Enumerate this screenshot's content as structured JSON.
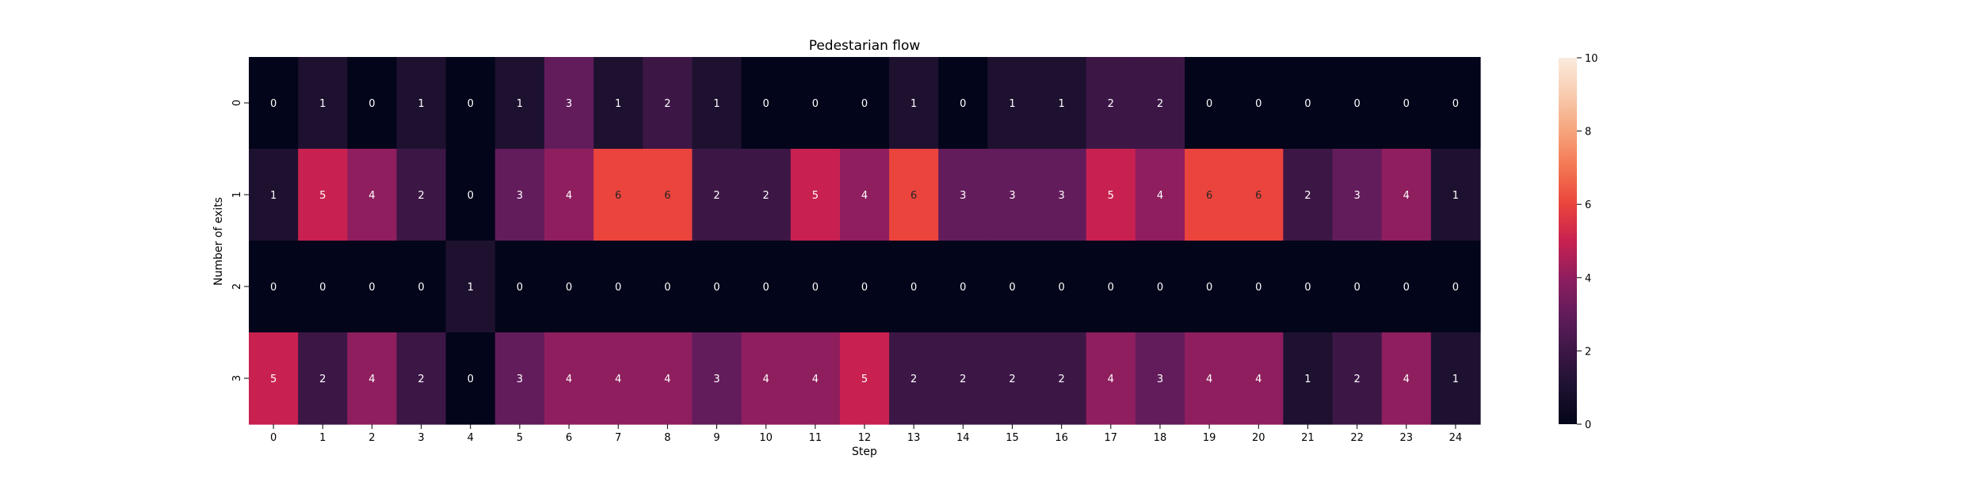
{
  "chart_data": {
    "type": "heatmap",
    "title": "Pedestarian flow",
    "xlabel": "Step",
    "ylabel": "Number of exits",
    "x_ticks": [
      "0",
      "1",
      "2",
      "3",
      "4",
      "5",
      "6",
      "7",
      "8",
      "9",
      "10",
      "11",
      "12",
      "13",
      "14",
      "15",
      "16",
      "17",
      "18",
      "19",
      "20",
      "21",
      "22",
      "23",
      "24"
    ],
    "y_ticks": [
      "0",
      "1",
      "2",
      "3"
    ],
    "values": [
      [
        0,
        1,
        0,
        1,
        0,
        1,
        3,
        1,
        2,
        1,
        0,
        0,
        0,
        1,
        0,
        1,
        1,
        2,
        2,
        0,
        0,
        0,
        0,
        0,
        0
      ],
      [
        1,
        5,
        4,
        2,
        0,
        3,
        4,
        6,
        6,
        2,
        2,
        5,
        4,
        6,
        3,
        3,
        3,
        5,
        4,
        6,
        6,
        2,
        3,
        4,
        1
      ],
      [
        0,
        0,
        0,
        0,
        1,
        0,
        0,
        0,
        0,
        0,
        0,
        0,
        0,
        0,
        0,
        0,
        0,
        0,
        0,
        0,
        0,
        0,
        0,
        0,
        0
      ],
      [
        5,
        2,
        4,
        2,
        0,
        3,
        4,
        4,
        4,
        3,
        4,
        4,
        5,
        2,
        2,
        2,
        2,
        4,
        3,
        4,
        4,
        1,
        2,
        4,
        1
      ]
    ],
    "colorbar": {
      "vmin": 0,
      "vmax": 10,
      "ticks": [
        "0",
        "2",
        "4",
        "6",
        "8",
        "10"
      ],
      "colormap": "rocket"
    }
  }
}
